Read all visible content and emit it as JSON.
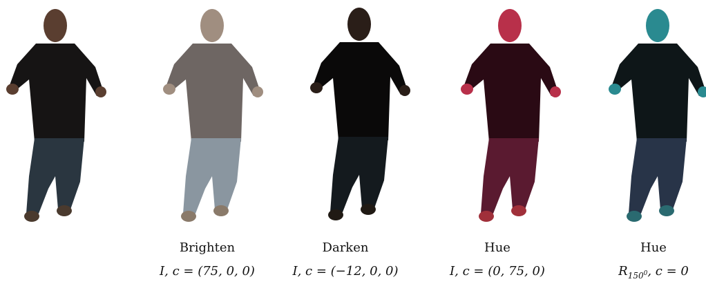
{
  "panels": [
    {
      "label": "Brighten",
      "formula": "I, c = (75, 0, 0)"
    },
    {
      "label": "Darken",
      "formula": "I, c = (−12, 0, 0)"
    },
    {
      "label": "Hue",
      "formula": "I, c = (0, 75, 0)"
    },
    {
      "label": "Hue",
      "formula": {
        "base": "R",
        "subscript": "150",
        "superscript": "0",
        "rest": ", c = 0"
      }
    }
  ]
}
